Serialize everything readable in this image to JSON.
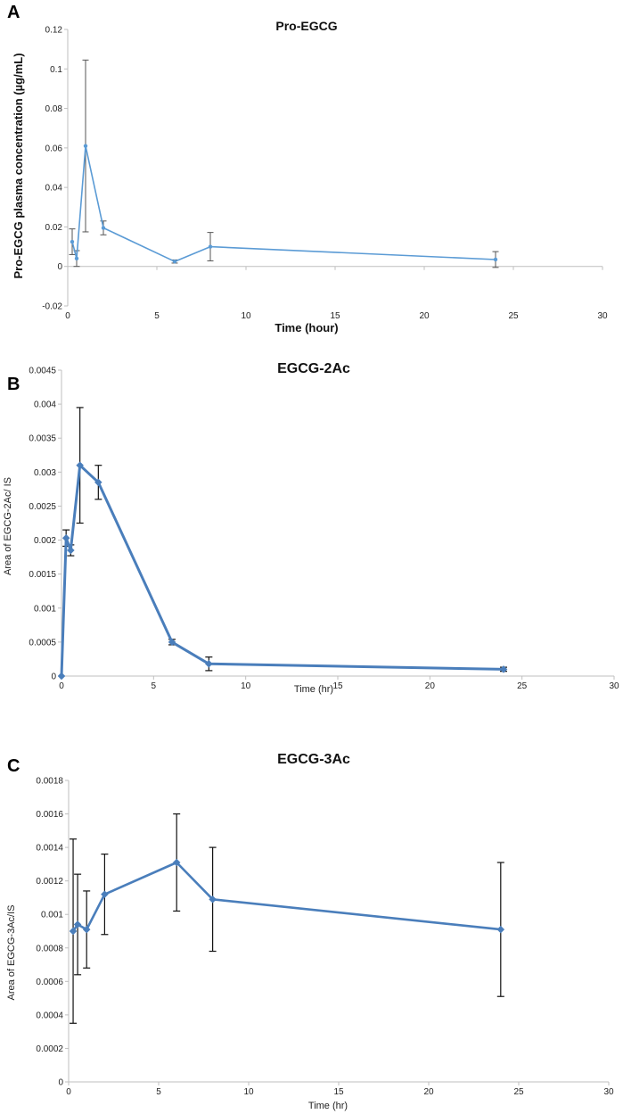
{
  "chart_data": [
    {
      "panel": "A",
      "type": "line",
      "title": "Pro-EGCG",
      "xlabel": "Time (hour)",
      "ylabel": "Pro-EGCG plasma  concentration (µg/mL)",
      "xlim": [
        0,
        30
      ],
      "ylim": [
        -0.02,
        0.12
      ],
      "xticks": [
        0,
        5,
        10,
        15,
        20,
        25,
        30
      ],
      "yticks": [
        -0.02,
        0,
        0.02,
        0.04,
        0.06,
        0.08,
        0.1,
        0.12
      ],
      "ytick_labels": [
        "-0.02",
        "0",
        "0.02",
        "0.04",
        "0.06",
        "0.08",
        "0.1",
        "0.12"
      ],
      "color": "#5b9bd5",
      "series": [
        {
          "name": "Pro-EGCG",
          "x": [
            0.25,
            0.5,
            1,
            2,
            6,
            8,
            24
          ],
          "y": [
            0.0125,
            0.004,
            0.061,
            0.0195,
            0.0025,
            0.01,
            0.0035
          ],
          "err": [
            0.0065,
            0.004,
            0.0435,
            0.0035,
            0.0008,
            0.0072,
            0.004
          ]
        }
      ]
    },
    {
      "panel": "B",
      "type": "line",
      "title": "EGCG-2Ac",
      "xlabel": "Time (hr)",
      "ylabel": "Area of EGCG-2Ac/ IS",
      "xlim": [
        0,
        30
      ],
      "ylim": [
        0,
        0.0045
      ],
      "xticks": [
        0,
        5,
        10,
        15,
        20,
        25,
        30
      ],
      "yticks": [
        0,
        0.0005,
        0.001,
        0.0015,
        0.002,
        0.0025,
        0.003,
        0.0035,
        0.004,
        0.0045
      ],
      "ytick_labels": [
        "0",
        "0.0005",
        "0.001",
        "0.0015",
        "0.002",
        "0.0025",
        "0.003",
        "0.0035",
        "0.004",
        "0.0045"
      ],
      "color": "#4a7ebb",
      "series": [
        {
          "name": "EGCG-2Ac",
          "x": [
            0,
            0.25,
            0.5,
            1,
            2,
            6,
            8,
            24
          ],
          "y": [
            0,
            0.00203,
            0.00185,
            0.0031,
            0.00285,
            0.0005,
            0.00018,
            0.0001
          ],
          "err": [
            0,
            0.00012,
            8e-05,
            0.00085,
            0.00025,
            4e-05,
            0.0001,
            3e-05
          ]
        }
      ]
    },
    {
      "panel": "C",
      "type": "line",
      "title": "EGCG-3Ac",
      "xlabel": "Time (hr)",
      "ylabel": "Area of EGCG-3Ac/IS",
      "xlim": [
        0,
        30
      ],
      "ylim": [
        0,
        0.0018
      ],
      "xticks": [
        0,
        5,
        10,
        15,
        20,
        25,
        30
      ],
      "yticks": [
        0,
        0.0002,
        0.0004,
        0.0006,
        0.0008,
        0.001,
        0.0012,
        0.0014,
        0.0016,
        0.0018
      ],
      "ytick_labels": [
        "0",
        "0.0002",
        "0.0004",
        "0.0006",
        "0.0008",
        "0.001",
        "0.0012",
        "0.0014",
        "0.0016",
        "0.0018"
      ],
      "color": "#4a7ebb",
      "series": [
        {
          "name": "EGCG-3Ac",
          "x": [
            0.25,
            0.5,
            1,
            2,
            6,
            8,
            24
          ],
          "y": [
            0.0009,
            0.00094,
            0.00091,
            0.00112,
            0.00131,
            0.00109,
            0.00091
          ],
          "err": [
            0.00055,
            0.0003,
            0.00023,
            0.00024,
            0.00029,
            0.00031,
            0.0004
          ]
        }
      ]
    }
  ]
}
